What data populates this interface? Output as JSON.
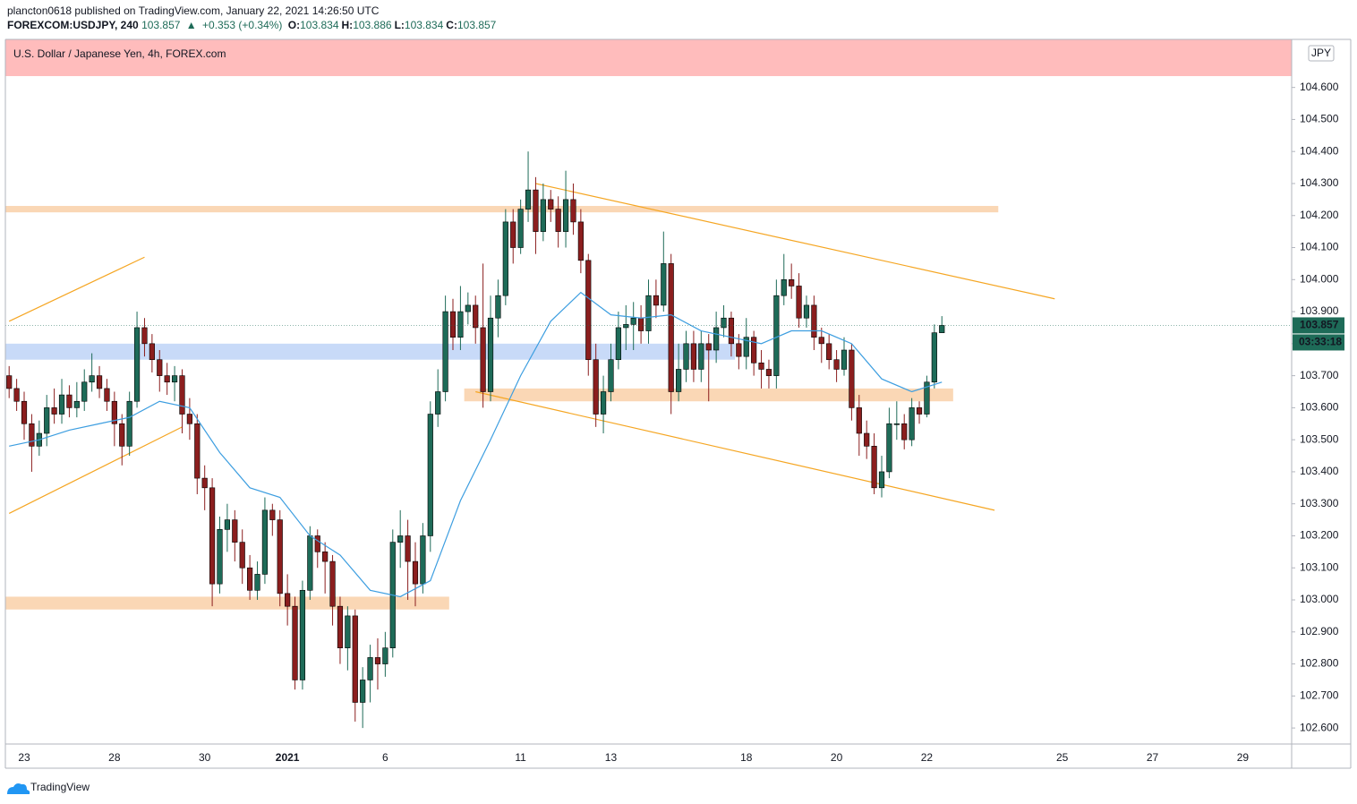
{
  "header": {
    "author_line": "plancton0618 published on TradingView.com, January 22, 2021 14:26:50 UTC",
    "symbol": "FOREXCOM:USDJPY, 240",
    "last": "103.857",
    "change": "+0.353 (+0.34%)",
    "ohlc": [
      {
        "label": "O:",
        "value": "103.834"
      },
      {
        "label": "H:",
        "value": "103.886"
      },
      {
        "label": "L:",
        "value": "103.834"
      },
      {
        "label": "C:",
        "value": "103.857"
      }
    ]
  },
  "footer": {
    "brand": "TradingView"
  },
  "chart_data": {
    "type": "candlestick",
    "title": "U.S. Dollar / Japanese Yen, 4h, FOREX.com",
    "currency": "JPY",
    "countdown": "03:33:18",
    "up_color": "#1e6b58",
    "down_color": "#8b1e1e",
    "ylim": [
      102.55,
      104.75
    ],
    "yticks": [
      {
        "value": 102.6,
        "label": "102.600"
      },
      {
        "value": 102.7,
        "label": "102.700"
      },
      {
        "value": 102.8,
        "label": "102.800"
      },
      {
        "value": 102.9,
        "label": "102.900"
      },
      {
        "value": 103.0,
        "label": "103.000"
      },
      {
        "value": 103.1,
        "label": "103.100"
      },
      {
        "value": 103.2,
        "label": "103.200"
      },
      {
        "value": 103.3,
        "label": "103.300"
      },
      {
        "value": 103.4,
        "label": "103.400"
      },
      {
        "value": 103.5,
        "label": "103.500"
      },
      {
        "value": 103.6,
        "label": "103.600"
      },
      {
        "value": 103.7,
        "label": "103.700"
      },
      {
        "value": 103.8,
        "label": "103.800"
      },
      {
        "value": 103.9,
        "label": "103.900"
      },
      {
        "value": 104.0,
        "label": "104.000"
      },
      {
        "value": 104.1,
        "label": "104.100"
      },
      {
        "value": 104.2,
        "label": "104.200"
      },
      {
        "value": 104.3,
        "label": "104.300"
      },
      {
        "value": 104.4,
        "label": "104.400"
      },
      {
        "value": 104.5,
        "label": "104.500"
      },
      {
        "value": 104.6,
        "label": "104.600"
      }
    ],
    "categories": [
      null,
      null,
      "23",
      null,
      null,
      null,
      null,
      null,
      null,
      null,
      null,
      null,
      null,
      null,
      "28",
      null,
      null,
      null,
      null,
      null,
      null,
      null,
      null,
      null,
      null,
      null,
      "30",
      null,
      null,
      null,
      null,
      null,
      null,
      null,
      null,
      null,
      null,
      "2021",
      null,
      null,
      null,
      null,
      null,
      null,
      null,
      null,
      null,
      null,
      null,
      null,
      "6",
      null,
      null,
      null,
      null,
      null,
      null,
      null,
      null,
      null,
      null,
      null,
      null,
      null,
      null,
      null,
      null,
      null,
      "11",
      null,
      null,
      null,
      null,
      null,
      null,
      null,
      null,
      null,
      null,
      null,
      "13",
      null,
      null,
      null,
      null,
      null,
      null,
      null,
      null,
      null,
      null,
      null,
      null,
      null,
      null,
      null,
      null,
      null,
      "18",
      null,
      null,
      null,
      null,
      null,
      null,
      null,
      null,
      null,
      null,
      null,
      "20",
      null,
      null,
      null,
      null,
      null,
      null,
      null,
      null,
      null,
      null,
      null,
      "22",
      null,
      null,
      null,
      null,
      null,
      null,
      null,
      null,
      null,
      null,
      null,
      null,
      null,
      null,
      null,
      null,
      null,
      "25",
      null,
      null,
      null,
      null,
      null,
      null,
      null,
      null,
      null,
      null,
      null,
      "27",
      null,
      null,
      null,
      null,
      null,
      null,
      null,
      null,
      null,
      null,
      null,
      "29",
      null,
      null,
      null,
      null,
      null,
      null
    ],
    "open": [
      103.7,
      103.66,
      103.62,
      103.55,
      103.48,
      103.52,
      103.6,
      103.58,
      103.64,
      103.6,
      103.62,
      103.68,
      103.7,
      103.66,
      103.62,
      103.55,
      103.48,
      103.62,
      103.85,
      103.8,
      103.75,
      103.7,
      103.68,
      103.7,
      103.58,
      103.55,
      103.38,
      103.35,
      103.05,
      103.22,
      103.25,
      103.18,
      103.1,
      103.03,
      103.08,
      103.28,
      103.25,
      103.02,
      102.98,
      102.75,
      103.03,
      103.2,
      103.15,
      103.12,
      102.98,
      102.85,
      102.95,
      102.68,
      102.75,
      102.82,
      102.8,
      102.85,
      103.18,
      103.2,
      103.12,
      103.05,
      103.2,
      103.58,
      103.65,
      103.9,
      103.82,
      103.9,
      103.92,
      103.85,
      103.65,
      103.88,
      103.95,
      104.18,
      104.1,
      104.22,
      104.28,
      104.15,
      104.25,
      104.22,
      104.15,
      104.25,
      104.18,
      104.06,
      103.75,
      103.58,
      103.65,
      103.75,
      103.85,
      103.86,
      103.88,
      103.84,
      103.95,
      103.92,
      104.05,
      103.65,
      103.72,
      103.8,
      103.72,
      103.8,
      103.78,
      103.85,
      103.88,
      103.8,
      103.76,
      103.82,
      103.74,
      103.72,
      103.7,
      103.95,
      104.0,
      103.98,
      103.88,
      103.92,
      103.82,
      103.8,
      103.75,
      103.72,
      103.78,
      103.6,
      103.52,
      103.48,
      103.35,
      103.4,
      103.55,
      103.55,
      103.5,
      103.6,
      103.58,
      103.68,
      103.834,
      null,
      null,
      null,
      null,
      null,
      null,
      null,
      null,
      null,
      null,
      null,
      null,
      null,
      null,
      null,
      null,
      null,
      null,
      null,
      null,
      null,
      null,
      null,
      null,
      null,
      null,
      null,
      null,
      null,
      null,
      null,
      null,
      null,
      null,
      null,
      null,
      null,
      null,
      null,
      null,
      null,
      null,
      null,
      null,
      null,
      null
    ],
    "high": [
      103.73,
      103.69,
      103.65,
      103.58,
      103.56,
      103.64,
      103.66,
      103.69,
      103.67,
      103.68,
      103.72,
      103.77,
      103.73,
      103.69,
      103.65,
      103.58,
      103.65,
      103.9,
      103.88,
      103.83,
      103.78,
      103.74,
      103.73,
      103.72,
      103.63,
      103.58,
      103.42,
      103.38,
      103.26,
      103.3,
      103.28,
      103.22,
      103.14,
      103.12,
      103.32,
      103.3,
      103.28,
      103.08,
      103.01,
      103.06,
      103.23,
      103.22,
      103.18,
      103.14,
      103.01,
      102.98,
      102.97,
      102.79,
      102.86,
      102.88,
      102.9,
      103.22,
      103.28,
      103.25,
      103.18,
      103.24,
      103.62,
      103.72,
      103.95,
      103.94,
      103.98,
      103.96,
      103.95,
      104.05,
      103.95,
      104.0,
      104.22,
      104.22,
      104.25,
      104.4,
      104.32,
      104.3,
      104.28,
      104.26,
      104.34,
      104.3,
      104.22,
      104.08,
      103.8,
      103.7,
      103.8,
      103.9,
      103.92,
      103.93,
      103.92,
      104.0,
      104.0,
      104.15,
      104.08,
      103.8,
      103.84,
      103.84,
      103.84,
      103.83,
      103.9,
      103.92,
      103.9,
      103.83,
      103.88,
      103.84,
      103.78,
      103.75,
      104.0,
      104.08,
      104.05,
      104.02,
      103.95,
      103.95,
      103.85,
      103.83,
      103.78,
      103.82,
      103.8,
      103.64,
      103.56,
      103.52,
      103.45,
      103.6,
      103.62,
      103.58,
      103.63,
      103.62,
      103.7,
      103.86,
      103.886,
      null,
      null,
      null,
      null,
      null,
      null,
      null,
      null,
      null,
      null,
      null,
      null,
      null,
      null,
      null,
      null,
      null,
      null,
      null,
      null,
      null,
      null,
      null,
      null,
      null,
      null,
      null,
      null,
      null,
      null,
      null,
      null,
      null,
      null,
      null,
      null,
      null,
      null,
      null,
      null,
      null,
      null,
      null,
      null,
      null,
      null
    ],
    "low": [
      103.63,
      103.59,
      103.5,
      103.4,
      103.45,
      103.48,
      103.55,
      103.55,
      103.57,
      103.57,
      103.59,
      103.65,
      103.63,
      103.59,
      103.48,
      103.42,
      103.45,
      103.6,
      103.76,
      103.71,
      103.65,
      103.64,
      103.62,
      103.52,
      103.5,
      103.33,
      103.28,
      102.98,
      103.02,
      103.15,
      103.12,
      103.05,
      103.0,
      103.0,
      103.05,
      103.2,
      102.98,
      102.92,
      102.72,
      102.72,
      103.0,
      103.1,
      103.02,
      102.92,
      102.8,
      102.78,
      102.62,
      102.6,
      102.68,
      102.72,
      102.76,
      102.82,
      103.1,
      103.0,
      102.98,
      103.02,
      103.15,
      103.54,
      103.62,
      103.78,
      103.78,
      103.86,
      103.8,
      103.6,
      103.62,
      103.82,
      103.92,
      104.05,
      104.08,
      104.18,
      104.08,
      104.12,
      104.18,
      104.1,
      104.1,
      104.14,
      104.02,
      103.7,
      103.54,
      103.52,
      103.62,
      103.72,
      103.78,
      103.78,
      103.8,
      103.8,
      103.88,
      103.9,
      103.58,
      103.62,
      103.68,
      103.68,
      103.68,
      103.62,
      103.74,
      103.82,
      103.76,
      103.72,
      103.72,
      103.7,
      103.66,
      103.66,
      103.66,
      103.92,
      103.94,
      103.85,
      103.85,
      103.78,
      103.74,
      103.72,
      103.68,
      103.7,
      103.56,
      103.45,
      103.44,
      103.33,
      103.32,
      103.38,
      103.5,
      103.47,
      103.48,
      103.55,
      103.57,
      103.66,
      103.834,
      null,
      null,
      null,
      null,
      null,
      null,
      null,
      null,
      null,
      null,
      null,
      null,
      null,
      null,
      null,
      null,
      null,
      null,
      null,
      null,
      null,
      null,
      null,
      null,
      null,
      null,
      null,
      null,
      null,
      null,
      null,
      null,
      null,
      null,
      null,
      null,
      null,
      null,
      null,
      null,
      null,
      null,
      null,
      null,
      null,
      null
    ],
    "close": [
      103.66,
      103.62,
      103.55,
      103.48,
      103.52,
      103.6,
      103.58,
      103.64,
      103.6,
      103.62,
      103.68,
      103.7,
      103.66,
      103.62,
      103.55,
      103.48,
      103.62,
      103.85,
      103.8,
      103.75,
      103.7,
      103.68,
      103.7,
      103.58,
      103.55,
      103.38,
      103.35,
      103.05,
      103.22,
      103.25,
      103.18,
      103.1,
      103.03,
      103.08,
      103.28,
      103.25,
      103.02,
      102.98,
      102.75,
      103.03,
      103.2,
      103.15,
      103.12,
      102.98,
      102.85,
      102.95,
      102.68,
      102.75,
      102.82,
      102.8,
      102.85,
      103.18,
      103.2,
      103.12,
      103.05,
      103.2,
      103.58,
      103.65,
      103.9,
      103.82,
      103.9,
      103.92,
      103.85,
      103.65,
      103.88,
      103.95,
      104.18,
      104.1,
      104.22,
      104.28,
      104.15,
      104.25,
      104.22,
      104.15,
      104.25,
      104.18,
      104.06,
      103.75,
      103.58,
      103.65,
      103.75,
      103.85,
      103.86,
      103.88,
      103.84,
      103.95,
      103.92,
      104.05,
      103.65,
      103.72,
      103.8,
      103.72,
      103.8,
      103.78,
      103.85,
      103.88,
      103.8,
      103.76,
      103.82,
      103.74,
      103.72,
      103.7,
      103.95,
      104.0,
      103.98,
      103.88,
      103.92,
      103.82,
      103.8,
      103.75,
      103.72,
      103.78,
      103.6,
      103.52,
      103.48,
      103.35,
      103.4,
      103.55,
      103.55,
      103.5,
      103.6,
      103.58,
      103.68,
      103.834,
      103.857,
      null,
      null,
      null,
      null,
      null,
      null,
      null,
      null,
      null,
      null,
      null,
      null,
      null,
      null,
      null,
      null,
      null,
      null,
      null,
      null,
      null,
      null,
      null,
      null,
      null,
      null,
      null,
      null,
      null,
      null,
      null,
      null,
      null,
      null,
      null,
      null,
      null,
      null,
      null,
      null,
      null,
      null,
      null,
      null,
      null,
      null
    ],
    "ma": {
      "color": "#3d9ee0",
      "x": [
        0,
        4,
        8,
        12,
        16,
        20,
        24,
        28,
        32,
        36,
        40,
        44,
        48,
        52,
        56,
        60,
        64,
        68,
        72,
        76,
        80,
        84,
        88,
        92,
        96,
        100,
        104,
        108,
        112,
        116,
        120,
        124
      ],
      "values": [
        103.48,
        103.5,
        103.53,
        103.55,
        103.57,
        103.62,
        103.6,
        103.46,
        103.35,
        103.32,
        103.2,
        103.14,
        103.03,
        103.01,
        103.06,
        103.31,
        103.5,
        103.7,
        103.87,
        103.96,
        103.89,
        103.88,
        103.89,
        103.84,
        103.82,
        103.8,
        103.84,
        103.84,
        103.8,
        103.69,
        103.65,
        103.68
      ]
    },
    "zones": [
      {
        "from": 0,
        "to": 131,
        "low": 104.21,
        "high": 104.23,
        "color": "#fad7b5"
      },
      {
        "from": 0,
        "to": 96,
        "low": 103.75,
        "high": 103.8,
        "color": "#c8daf8"
      },
      {
        "from": 61,
        "to": 125,
        "low": 103.62,
        "high": 103.66,
        "color": "#fad7b5"
      },
      {
        "from": 0,
        "to": 58,
        "low": 102.97,
        "high": 103.01,
        "color": "#fad7b5"
      }
    ],
    "trend_lines": [
      {
        "from": 0,
        "from_price": 103.87,
        "to": 18,
        "to_price": 104.07,
        "color": "#f5a623"
      },
      {
        "from": 0,
        "from_price": 103.27,
        "to": 23,
        "to_price": 103.54,
        "color": "#f5a623"
      },
      {
        "from": 70,
        "from_price": 104.3,
        "to": 139,
        "to_price": 103.94,
        "color": "#f5a623"
      },
      {
        "from": 62,
        "from_price": 103.65,
        "to": 131,
        "to_price": 103.28,
        "color": "#f5a623"
      }
    ]
  }
}
